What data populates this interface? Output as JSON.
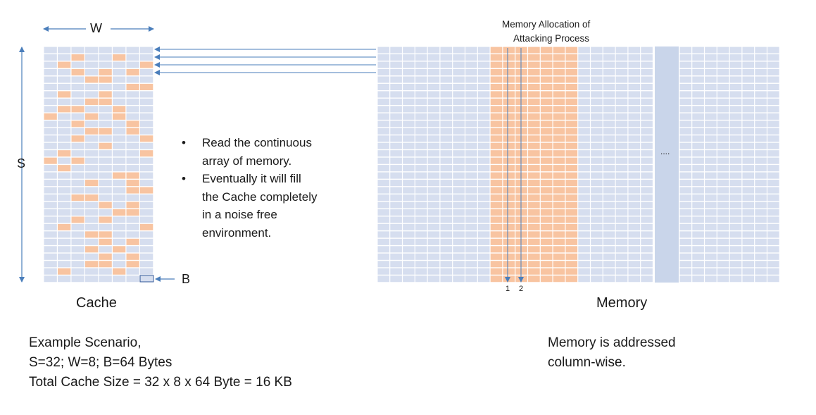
{
  "colors": {
    "cell": "#d6deef",
    "cell_highlight": "#f8c4a1",
    "cell_divider": "#ffffff",
    "arrow": "#4a7ebb",
    "memory_gap_column": "#c9d5ea",
    "text": "#1a1a1a"
  },
  "cache": {
    "width_label": "W",
    "sets_label": "S",
    "block_label": "B",
    "caption": "Cache",
    "rows": 32,
    "cols": 8,
    "highlighted_cells": [
      [
        1,
        2
      ],
      [
        1,
        5
      ],
      [
        2,
        1
      ],
      [
        2,
        7
      ],
      [
        3,
        2
      ],
      [
        3,
        4
      ],
      [
        3,
        6
      ],
      [
        4,
        3
      ],
      [
        4,
        4
      ],
      [
        5,
        6
      ],
      [
        5,
        7
      ],
      [
        6,
        1
      ],
      [
        6,
        4
      ],
      [
        7,
        3
      ],
      [
        7,
        4
      ],
      [
        8,
        1
      ],
      [
        8,
        2
      ],
      [
        8,
        5
      ],
      [
        9,
        0
      ],
      [
        9,
        3
      ],
      [
        9,
        5
      ],
      [
        10,
        2
      ],
      [
        10,
        6
      ],
      [
        11,
        3
      ],
      [
        11,
        4
      ],
      [
        11,
        6
      ],
      [
        12,
        2
      ],
      [
        12,
        7
      ],
      [
        13,
        4
      ],
      [
        14,
        1
      ],
      [
        14,
        7
      ],
      [
        15,
        0
      ],
      [
        15,
        2
      ],
      [
        16,
        1
      ],
      [
        17,
        5
      ],
      [
        17,
        6
      ],
      [
        18,
        3
      ],
      [
        18,
        6
      ],
      [
        19,
        6
      ],
      [
        19,
        7
      ],
      [
        20,
        2
      ],
      [
        20,
        3
      ],
      [
        21,
        4
      ],
      [
        21,
        6
      ],
      [
        22,
        5
      ],
      [
        22,
        6
      ],
      [
        23,
        2
      ],
      [
        23,
        4
      ],
      [
        24,
        1
      ],
      [
        24,
        7
      ],
      [
        25,
        3
      ],
      [
        25,
        4
      ],
      [
        26,
        4
      ],
      [
        26,
        6
      ],
      [
        27,
        3
      ],
      [
        27,
        5
      ],
      [
        28,
        4
      ],
      [
        28,
        6
      ],
      [
        29,
        3
      ],
      [
        29,
        4
      ],
      [
        29,
        6
      ],
      [
        30,
        1
      ],
      [
        30,
        5
      ]
    ]
  },
  "memory": {
    "caption": "Memory",
    "allocation_label_line1": "Memory Allocation of",
    "allocation_label_line2": "Attacking Process",
    "rows": 32,
    "allocated_cols": [
      9,
      10,
      11,
      12,
      13,
      14,
      15
    ],
    "ellipsis": "....",
    "column_markers": [
      "1",
      "2"
    ]
  },
  "bullets": [
    [
      "Read the continuous",
      "array of memory."
    ],
    [
      "Eventually it will fill",
      "the Cache completely",
      "in a noise free",
      "environment."
    ]
  ],
  "example": {
    "line1": "Example Scenario,",
    "line2": "S=32; W=8; B=64 Bytes",
    "line3": "Total Cache Size = 32 x 8 x 64 Byte = 16 KB"
  },
  "note": {
    "line1": "Memory is addressed",
    "line2": "column-wise."
  }
}
